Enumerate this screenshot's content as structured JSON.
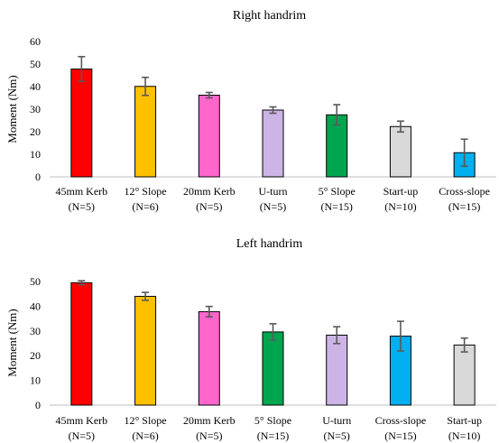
{
  "chart_data": [
    {
      "type": "bar",
      "title": "Right handrim",
      "xlabel": "",
      "ylabel": "Moment (Nm)",
      "ylim": [
        0,
        60
      ],
      "yticks": [
        0,
        10,
        20,
        30,
        40,
        50,
        60
      ],
      "grid": false,
      "legend": "none",
      "categories": [
        [
          "45mm Kerb",
          "(N=5)"
        ],
        [
          "12° Slope",
          "(N=6)"
        ],
        [
          "20mm Kerb",
          "(N=5)"
        ],
        [
          "U-turn",
          "(N=5)"
        ],
        [
          "5° Slope",
          "(N=15)"
        ],
        [
          "Start-up",
          "(N=10)"
        ],
        [
          "Cross-slope",
          "(N=15)"
        ]
      ],
      "values": [
        47.8,
        40.1,
        36.2,
        29.6,
        27.5,
        22.3,
        10.7
      ],
      "errors": [
        5.5,
        4.0,
        1.2,
        1.4,
        4.5,
        2.4,
        6.0
      ],
      "colors": [
        "#ff0000",
        "#ffc000",
        "#ff66cc",
        "#cdb4e6",
        "#00a550",
        "#d9d9d9",
        "#00b0f0"
      ]
    },
    {
      "type": "bar",
      "title": "Left handrim",
      "xlabel": "",
      "ylabel": "Moment (Nm)",
      "ylim": [
        0,
        50
      ],
      "yticks": [
        0,
        10,
        20,
        30,
        40,
        50
      ],
      "grid": false,
      "legend": "none",
      "categories": [
        [
          "45mm Kerb",
          "(N=5)"
        ],
        [
          "12° Slope",
          "(N=6)"
        ],
        [
          "20mm Kerb",
          "(N=5)"
        ],
        [
          "5° Slope",
          "(N=15)"
        ],
        [
          "U-turn",
          "(N=5)"
        ],
        [
          "Cross-slope",
          "(N=15)"
        ],
        [
          "Start-up",
          "(N=10)"
        ]
      ],
      "values": [
        49.5,
        44.0,
        37.8,
        29.6,
        28.3,
        27.9,
        24.3
      ],
      "errors": [
        0.8,
        1.6,
        2.1,
        3.3,
        3.4,
        6.0,
        2.8
      ],
      "colors": [
        "#ff0000",
        "#ffc000",
        "#ff66cc",
        "#00a550",
        "#cdb4e6",
        "#00b0f0",
        "#d9d9d9"
      ]
    }
  ]
}
